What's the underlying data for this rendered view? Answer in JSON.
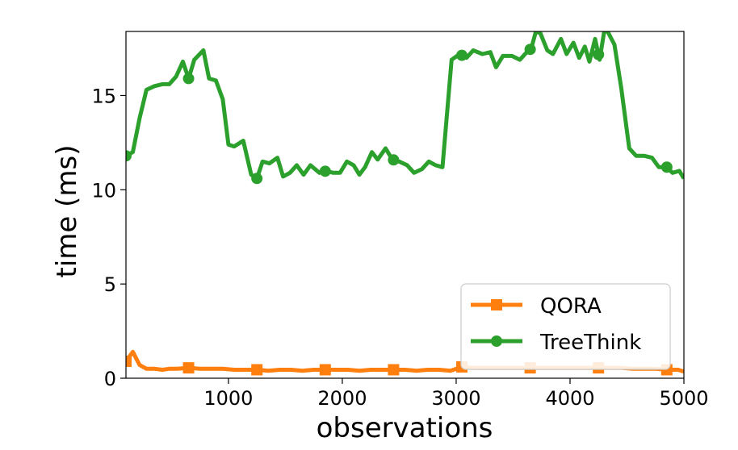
{
  "chart_data": {
    "type": "line",
    "xlabel": "observations",
    "ylabel": "time (ms)",
    "xlim": [
      100,
      5000
    ],
    "ylim": [
      0,
      18.4
    ],
    "xticks": [
      1000,
      2000,
      3000,
      4000,
      5000
    ],
    "yticks": [
      0,
      5,
      10,
      15
    ],
    "grid": false,
    "legend_position": "lower-right",
    "series": [
      {
        "name": "QORA",
        "color": "#ff7f0e",
        "marker": "square",
        "x": [
          100,
          160,
          220,
          280,
          350,
          420,
          480,
          550,
          650,
          750,
          850,
          950,
          1050,
          1150,
          1250,
          1350,
          1450,
          1550,
          1650,
          1750,
          1850,
          1950,
          2050,
          2150,
          2250,
          2350,
          2450,
          2550,
          2650,
          2750,
          2850,
          2950,
          3050,
          3150,
          3250,
          3350,
          3450,
          3550,
          3650,
          3750,
          3850,
          3950,
          4050,
          4150,
          4250,
          4350,
          4450,
          4550,
          4650,
          4750,
          4850,
          4950,
          5000
        ],
        "y": [
          0.9,
          1.4,
          0.7,
          0.5,
          0.5,
          0.45,
          0.5,
          0.5,
          0.55,
          0.5,
          0.5,
          0.5,
          0.45,
          0.45,
          0.45,
          0.4,
          0.45,
          0.45,
          0.4,
          0.45,
          0.45,
          0.45,
          0.45,
          0.4,
          0.45,
          0.45,
          0.45,
          0.45,
          0.4,
          0.45,
          0.45,
          0.4,
          0.6,
          0.55,
          0.55,
          0.55,
          0.55,
          0.55,
          0.55,
          0.55,
          0.55,
          0.55,
          0.55,
          0.55,
          0.55,
          0.55,
          0.55,
          0.5,
          0.5,
          0.5,
          0.45,
          0.45,
          0.35
        ],
        "marker_x": [
          100,
          650,
          1250,
          1850,
          2450,
          3050,
          3650,
          4250,
          4850
        ]
      },
      {
        "name": "TreeThink",
        "color": "#2ca02c",
        "marker": "circle",
        "x": [
          100,
          160,
          220,
          280,
          350,
          420,
          480,
          540,
          600,
          650,
          700,
          780,
          830,
          890,
          950,
          1000,
          1050,
          1130,
          1200,
          1250,
          1300,
          1360,
          1430,
          1480,
          1540,
          1600,
          1660,
          1720,
          1800,
          1860,
          1920,
          1980,
          2040,
          2100,
          2150,
          2200,
          2260,
          2310,
          2380,
          2440,
          2500,
          2570,
          2630,
          2700,
          2760,
          2820,
          2880,
          2960,
          3030,
          3090,
          3150,
          3230,
          3300,
          3350,
          3410,
          3490,
          3560,
          3620,
          3660,
          3700,
          3740,
          3800,
          3850,
          3920,
          3970,
          4030,
          4080,
          4130,
          4170,
          4220,
          4260,
          4300,
          4330,
          4390,
          4450,
          4520,
          4580,
          4650,
          4720,
          4780,
          4850,
          4900,
          4960,
          5000
        ],
        "y": [
          11.8,
          12.0,
          13.8,
          15.3,
          15.5,
          15.6,
          15.6,
          16.0,
          16.8,
          15.9,
          16.9,
          17.4,
          15.9,
          15.8,
          14.8,
          12.4,
          12.3,
          12.6,
          10.8,
          10.6,
          11.5,
          11.4,
          11.7,
          10.7,
          10.9,
          11.3,
          10.8,
          11.3,
          10.9,
          11.0,
          10.9,
          10.9,
          11.5,
          11.3,
          10.8,
          11.2,
          12.0,
          11.6,
          12.2,
          11.6,
          11.5,
          11.3,
          10.9,
          11.1,
          11.5,
          11.3,
          11.2,
          16.9,
          17.2,
          17.0,
          17.4,
          17.2,
          17.3,
          16.5,
          17.1,
          17.1,
          16.9,
          17.3,
          17.5,
          18.4,
          18.3,
          17.4,
          17.2,
          18.0,
          17.2,
          17.8,
          17.0,
          17.6,
          16.8,
          18.0,
          16.9,
          18.4,
          18.4,
          17.7,
          15.4,
          12.2,
          11.8,
          11.8,
          11.7,
          11.2,
          11.2,
          10.9,
          11.0,
          10.6
        ],
        "marker_x": [
          100,
          650,
          1250,
          1850,
          2450,
          3050,
          3650,
          4250,
          4850
        ]
      }
    ]
  }
}
